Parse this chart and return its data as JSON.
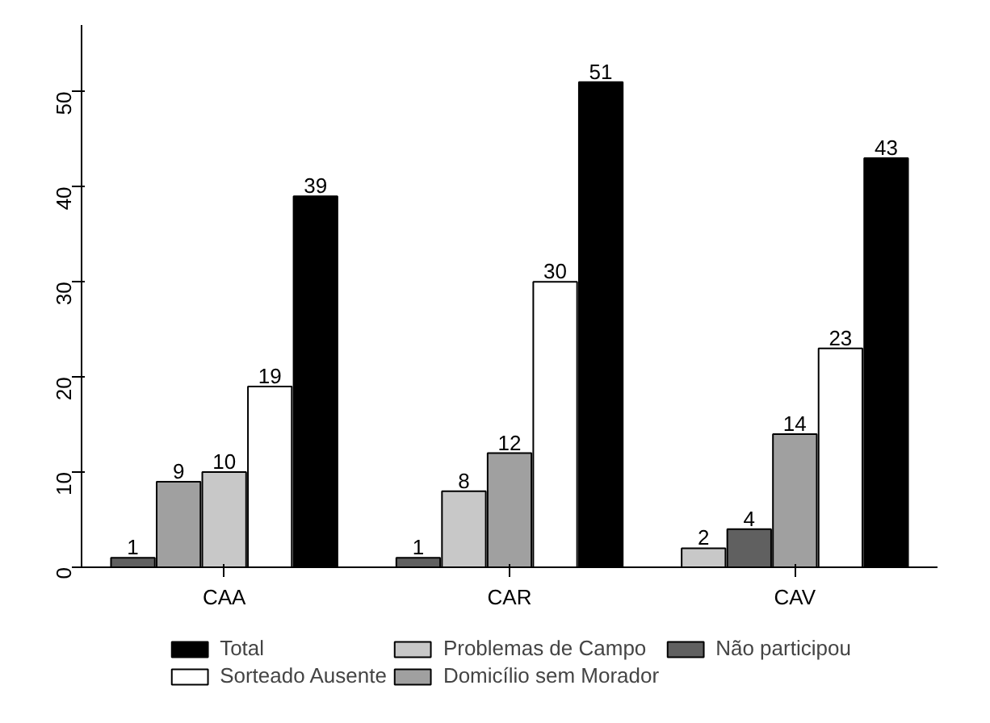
{
  "chart_data": {
    "type": "bar",
    "categories": [
      "CAA",
      "CAR",
      "CAV"
    ],
    "series": [
      {
        "name": "Total",
        "color": "#000000",
        "values": [
          39,
          51,
          43
        ]
      },
      {
        "name": "Sorteado Ausente",
        "color": "#ffffff",
        "values": [
          19,
          30,
          23
        ]
      },
      {
        "name": "Problemas de Campo",
        "color": "#c8c8c8",
        "values": [
          10,
          8,
          2
        ]
      },
      {
        "name": "Domicílio sem Morador",
        "color": "#a0a0a0",
        "values": [
          9,
          12,
          14
        ]
      },
      {
        "name": "Não participou",
        "color": "#606060",
        "values": [
          1,
          1,
          4
        ]
      }
    ],
    "ylim": [
      0,
      57
    ],
    "yticks": [
      0,
      10,
      20,
      30,
      40,
      50
    ],
    "grid": false,
    "legend": "bottom",
    "data_labels": true
  }
}
